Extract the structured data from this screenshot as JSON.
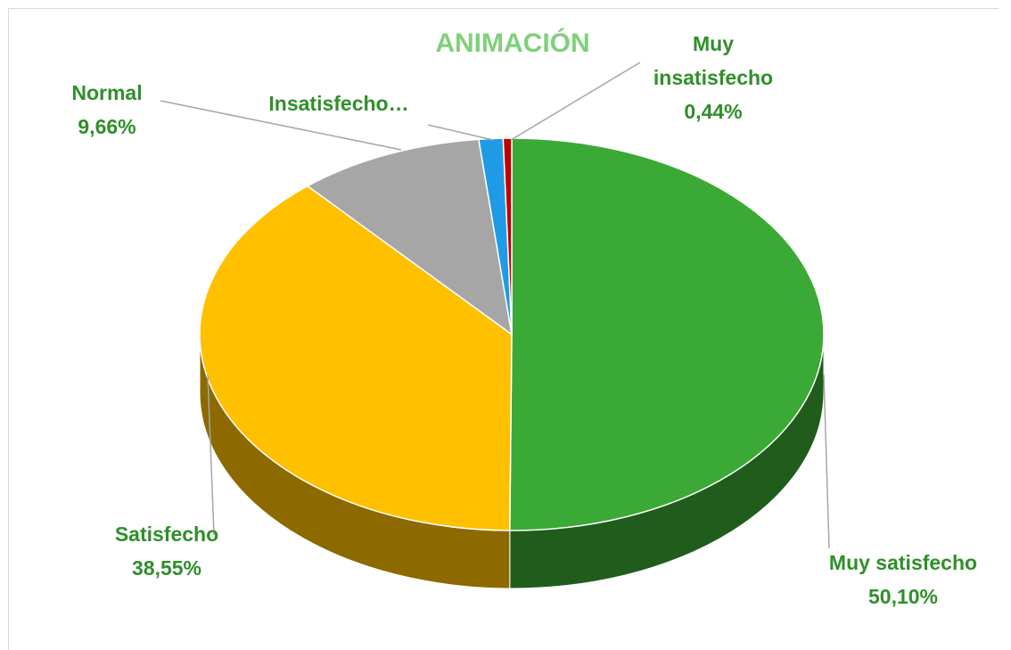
{
  "chart_data": {
    "type": "pie3d",
    "title": "ANIMACIÓN",
    "categories": [
      "Muy satisfecho",
      "Satisfecho",
      "Normal",
      "Insatisfecho…",
      "Muy insatisfecho"
    ],
    "values": [
      50.1,
      38.55,
      9.66,
      1.25,
      0.44
    ],
    "value_labels": [
      "50,10%",
      "38,55%",
      "9,66%",
      null,
      "0,44%"
    ],
    "colors": [
      "#3aa935",
      "#ffc000",
      "#a6a6a6",
      "#1f9be6",
      "#c00000"
    ]
  }
}
